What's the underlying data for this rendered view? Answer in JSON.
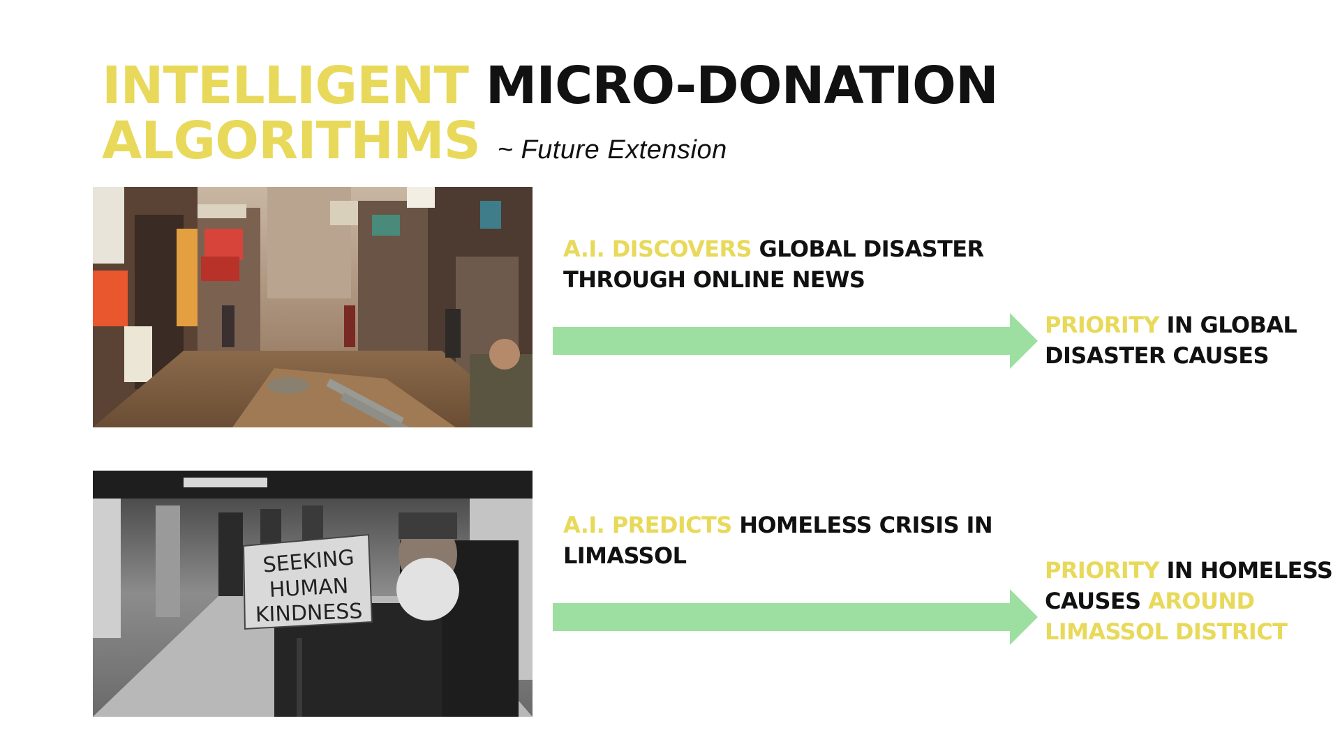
{
  "title": {
    "line1_highlight": "INTELLIGENT",
    "line1_rest": "MICRO-DONATION",
    "line2_highlight": "ALGORITHMS",
    "subtitle": "~ Future Extension"
  },
  "colors": {
    "highlight": "#e8d95a",
    "text": "#111111",
    "arrow": "#9ddfa0",
    "background": "#ffffff"
  },
  "rows": [
    {
      "image_subject": "crowded-street-disaster-photo",
      "desc_highlight": "A.I. DISCOVERS",
      "desc_rest": "GLOBAL DISASTER THROUGH ONLINE NEWS",
      "result": {
        "part1_highlight": "PRIORITY",
        "part2": "IN GLOBAL DISASTER CAUSES"
      }
    },
    {
      "image_subject": "homeless-man-sign-photo",
      "sign_text": [
        "SEEKING",
        "HUMAN",
        "KINDNESS"
      ],
      "desc_highlight": "A.I. PREDICTS",
      "desc_rest": "HOMELESS CRISIS IN LIMASSOL",
      "result": {
        "part1_highlight": "PRIORITY",
        "part2": "IN HOMELESS CAUSES",
        "part3_highlight": "AROUND LIMASSOL DISTRICT"
      }
    }
  ]
}
